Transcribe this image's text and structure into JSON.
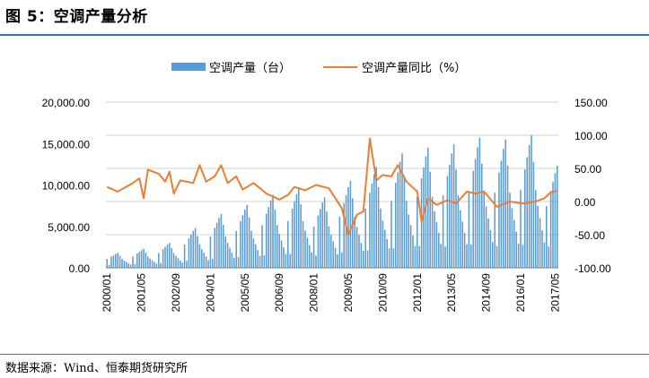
{
  "figure": {
    "title": "图 5：空调产量分析",
    "source": "数据来源：Wind、恒泰期货研究所"
  },
  "colors": {
    "bar": "#5b9bd5",
    "line": "#ed7d31",
    "grid": "#d0d0d0",
    "rule": "#2e75b6"
  },
  "chart_data": {
    "type": "bar+line",
    "legend_placement": "top-center",
    "grid": true,
    "left_axis": {
      "ylim": [
        0,
        20000
      ],
      "ticks": [
        "20,000.00",
        "15,000.00",
        "10,000.00",
        "5,000.00",
        "0.00"
      ]
    },
    "right_axis": {
      "ylim": [
        -100,
        150
      ],
      "ticks": [
        "150.00",
        "100.00",
        "50.00",
        "0.00",
        "-50.00",
        "-100.00"
      ]
    },
    "x_tick_labels": [
      "2000/01",
      "2001/05",
      "2002/09",
      "2004/01",
      "2005/05",
      "2006/09",
      "2008/01",
      "2009/05",
      "2010/09",
      "2012/01",
      "2013/05",
      "2014/09",
      "2016/01",
      "2017/05"
    ],
    "x_start": "2000-01",
    "x_end": "2017-06",
    "series": [
      {
        "name": "空调产量（台）",
        "type": "bar",
        "axis": "left",
        "annual_peak": [
          1800,
          2300,
          3000,
          4800,
          6500,
          7600,
          8800,
          9600,
          8500,
          10500,
          12200,
          13800,
          14500,
          14900,
          15700,
          15500,
          16000,
          12300
        ],
        "annual_low": [
          200,
          250,
          300,
          400,
          500,
          600,
          700,
          800,
          700,
          900,
          1000,
          1100,
          1300,
          1200,
          1400,
          1200,
          1300,
          1500
        ]
      },
      {
        "name": "空调产量同比（%）",
        "type": "line",
        "axis": "right",
        "points": [
          [
            "2000-01",
            22
          ],
          [
            "2000-06",
            15
          ],
          [
            "2001-01",
            28
          ],
          [
            "2001-04",
            35
          ],
          [
            "2001-06",
            5
          ],
          [
            "2001-08",
            48
          ],
          [
            "2002-01",
            42
          ],
          [
            "2002-04",
            30
          ],
          [
            "2002-06",
            45
          ],
          [
            "2002-08",
            12
          ],
          [
            "2002-11",
            32
          ],
          [
            "2003-05",
            28
          ],
          [
            "2003-08",
            55
          ],
          [
            "2003-11",
            30
          ],
          [
            "2004-03",
            38
          ],
          [
            "2004-06",
            55
          ],
          [
            "2004-09",
            28
          ],
          [
            "2005-01",
            38
          ],
          [
            "2005-04",
            18
          ],
          [
            "2005-09",
            28
          ],
          [
            "2006-03",
            12
          ],
          [
            "2006-09",
            3
          ],
          [
            "2007-01",
            10
          ],
          [
            "2007-04",
            22
          ],
          [
            "2007-09",
            17
          ],
          [
            "2008-02",
            25
          ],
          [
            "2008-08",
            20
          ],
          [
            "2009-02",
            -10
          ],
          [
            "2009-05",
            -50
          ],
          [
            "2009-09",
            -20
          ],
          [
            "2009-12",
            -15
          ],
          [
            "2010-03",
            95
          ],
          [
            "2010-06",
            32
          ],
          [
            "2010-09",
            40
          ],
          [
            "2011-01",
            38
          ],
          [
            "2011-04",
            55
          ],
          [
            "2011-08",
            30
          ],
          [
            "2012-01",
            15
          ],
          [
            "2012-03",
            -30
          ],
          [
            "2012-06",
            5
          ],
          [
            "2012-10",
            -5
          ],
          [
            "2013-03",
            2
          ],
          [
            "2013-07",
            -3
          ],
          [
            "2013-12",
            15
          ],
          [
            "2014-04",
            12
          ],
          [
            "2014-08",
            15
          ],
          [
            "2015-02",
            -8
          ],
          [
            "2015-08",
            0
          ],
          [
            "2016-02",
            -3
          ],
          [
            "2016-08",
            0
          ],
          [
            "2016-12",
            5
          ],
          [
            "2017-03",
            14
          ],
          [
            "2017-06",
            16
          ]
        ]
      }
    ]
  }
}
